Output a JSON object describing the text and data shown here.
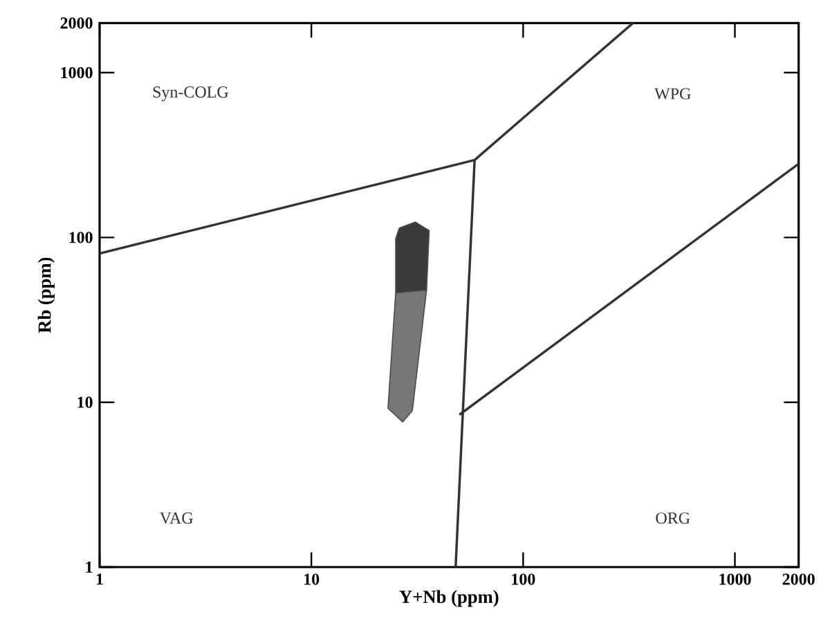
{
  "chart_data": {
    "type": "line",
    "xlabel": "Y+Nb (ppm)",
    "ylabel": "Rb (ppm)",
    "log": "xy",
    "grid": false,
    "marker": "none",
    "line_style": "solid",
    "xlim": [
      1,
      2000
    ],
    "ylim": [
      1,
      2000
    ],
    "xticks": [
      1,
      10,
      100,
      1000,
      2000
    ],
    "yticks": [
      1,
      10,
      100,
      1000,
      2000
    ],
    "series": [
      {
        "color": "#333333",
        "x": [
          1,
          59
        ],
        "values": [
          80,
          295
        ]
      },
      {
        "color": "#333333",
        "x": [
          48,
          59
        ],
        "values": [
          1,
          295
        ]
      },
      {
        "color": "#333333",
        "x": [
          59,
          330
        ],
        "values": [
          295,
          2000
        ]
      },
      {
        "color": "#333333",
        "x": [
          50,
          2000
        ],
        "values": [
          8.4,
          280
        ]
      },
      {
        "type": "area",
        "color": "#3a3a3a",
        "x": [
          25,
          26,
          31,
          36,
          35,
          25
        ],
        "values": [
          98,
          114,
          124,
          110,
          48,
          46
        ]
      },
      {
        "type": "area",
        "color": "#777777",
        "x": [
          25,
          35,
          30,
          27,
          23
        ],
        "values": [
          46,
          48,
          8.9,
          7.6,
          9.2
        ]
      }
    ],
    "annotations": [
      "Syn-COLG",
      "WPG",
      "VAG",
      "ORG"
    ]
  }
}
